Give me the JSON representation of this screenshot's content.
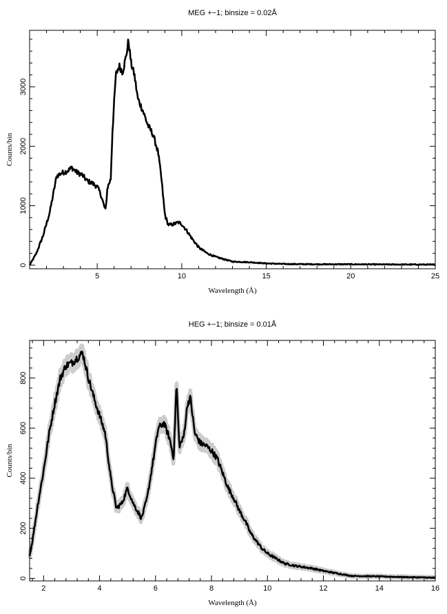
{
  "chart_data": [
    {
      "type": "line",
      "title": "MEG +−1; binsize = 0.02Å",
      "xlabel": "Wavelength (Å)",
      "ylabel": "Counts/bin",
      "xlim": [
        1.0,
        25.0
      ],
      "ylim": [
        -60,
        3950
      ],
      "xticks": [
        5,
        10,
        15,
        20,
        25
      ],
      "yticks": [
        0,
        1000,
        2000,
        3000
      ],
      "grid": false,
      "error_bars": false,
      "series": [
        {
          "x": [
            1.0,
            1.4,
            1.8,
            2.2,
            2.6,
            2.9,
            3.2,
            3.5,
            3.8,
            4.1,
            4.4,
            4.7,
            5.0,
            5.2,
            5.4,
            5.5,
            5.6,
            5.8,
            5.9,
            6.1,
            6.3,
            6.5,
            6.7,
            6.85,
            7.0,
            7.2,
            7.4,
            7.7,
            8.0,
            8.3,
            8.6,
            8.8,
            9.0,
            9.2,
            9.4,
            9.6,
            9.8,
            10.0,
            10.3,
            10.6,
            11.0,
            11.5,
            12.0,
            12.5,
            13.0,
            14.0,
            15.0,
            16.0,
            18.0,
            20.0,
            22.0,
            25.0
          ],
          "y": [
            0,
            200,
            500,
            900,
            1500,
            1550,
            1580,
            1640,
            1560,
            1520,
            1420,
            1380,
            1320,
            1200,
            1000,
            920,
            1300,
            1450,
            2250,
            3200,
            3350,
            3250,
            3500,
            3780,
            3400,
            3200,
            2800,
            2600,
            2350,
            2200,
            1900,
            1450,
            850,
            680,
            680,
            700,
            720,
            690,
            580,
            450,
            300,
            200,
            140,
            100,
            60,
            50,
            30,
            20,
            15,
            15,
            12,
            10
          ]
        }
      ]
    },
    {
      "type": "line",
      "title": "HEG +−1; binsize = 0.01Å",
      "xlabel": "Wavelength (Å)",
      "ylabel": "Counts/bin",
      "xlim": [
        1.5,
        16.0
      ],
      "ylim": [
        -10,
        950
      ],
      "xticks": [
        2,
        4,
        6,
        8,
        10,
        12,
        14,
        16
      ],
      "yticks": [
        0,
        200,
        400,
        600,
        800
      ],
      "grid": false,
      "error_bars": true,
      "series": [
        {
          "x": [
            1.5,
            1.6,
            1.8,
            2.0,
            2.2,
            2.4,
            2.6,
            2.8,
            3.0,
            3.2,
            3.4,
            3.6,
            3.8,
            4.0,
            4.2,
            4.4,
            4.6,
            4.8,
            5.0,
            5.2,
            5.4,
            5.5,
            5.7,
            5.9,
            6.1,
            6.3,
            6.5,
            6.65,
            6.75,
            6.85,
            7.0,
            7.15,
            7.25,
            7.4,
            7.6,
            7.8,
            8.0,
            8.2,
            8.4,
            8.6,
            8.8,
            9.0,
            9.2,
            9.4,
            9.6,
            9.8,
            10.0,
            10.3,
            10.6,
            11.0,
            11.3,
            11.6,
            12.0,
            12.5,
            13.0,
            14.0,
            15.0,
            16.0
          ],
          "y": [
            90,
            150,
            300,
            430,
            580,
            700,
            800,
            850,
            860,
            880,
            900,
            800,
            720,
            650,
            580,
            400,
            280,
            300,
            360,
            300,
            260,
            240,
            320,
            460,
            600,
            620,
            560,
            480,
            780,
            530,
            560,
            700,
            720,
            580,
            540,
            530,
            510,
            480,
            420,
            360,
            320,
            270,
            230,
            180,
            150,
            120,
            100,
            80,
            60,
            50,
            45,
            40,
            30,
            20,
            10,
            8,
            5,
            3
          ]
        }
      ]
    }
  ]
}
